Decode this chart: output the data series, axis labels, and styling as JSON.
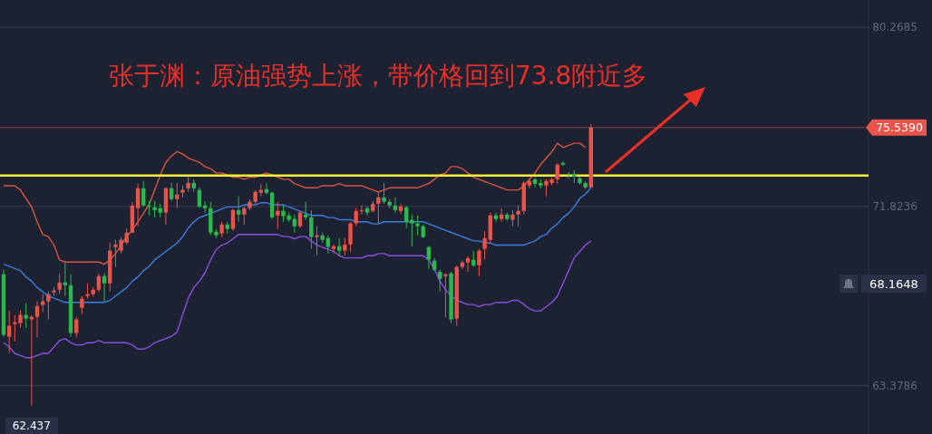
{
  "chart_data": {
    "type": "candlestick",
    "title": "张于渊：原油强势上涨，带价格回到73.8附近多",
    "categories": [
      null,
      null,
      null,
      null,
      null,
      null,
      null,
      null,
      null,
      null,
      null,
      null,
      null,
      null,
      null,
      null,
      null,
      null,
      null,
      null,
      null,
      null,
      null,
      null,
      null,
      null,
      null,
      null,
      null,
      null,
      null,
      null,
      null,
      null,
      null,
      null,
      null,
      null,
      null,
      null,
      null,
      null,
      null,
      null,
      null,
      null,
      null,
      null,
      null,
      null,
      null,
      null,
      null,
      null,
      null,
      null,
      null,
      null,
      null,
      null,
      null,
      null,
      null,
      null,
      null,
      null,
      null,
      null,
      null,
      null,
      null,
      null,
      null,
      null,
      null,
      null,
      null,
      null,
      null,
      null,
      null,
      null,
      null,
      null,
      null,
      null,
      null,
      null,
      null,
      null,
      null,
      null,
      null,
      null,
      null,
      null,
      null,
      null,
      null,
      null,
      null,
      null,
      null,
      null,
      null,
      null
    ],
    "ohlc": [
      [
        68.63,
        68.84,
        65.68,
        65.77
      ],
      [
        65.68,
        66.92,
        64.92,
        66.2
      ],
      [
        66.28,
        66.71,
        65.47,
        66.37
      ],
      [
        66.32,
        66.92,
        66.11,
        66.71
      ],
      [
        66.71,
        67.26,
        66.11,
        66.54
      ],
      [
        66.5,
        66.71,
        62.437,
        66.62
      ],
      [
        66.62,
        67.35,
        65.64,
        67.13
      ],
      [
        67.18,
        67.69,
        66.84,
        67.35
      ],
      [
        67.35,
        67.82,
        66.5,
        67.69
      ],
      [
        67.77,
        68.03,
        67.6,
        67.86
      ],
      [
        67.9,
        68.67,
        67.69,
        68.24
      ],
      [
        68.24,
        69.18,
        67.6,
        68.11
      ],
      [
        68.11,
        68.63,
        65.68,
        65.86
      ],
      [
        65.86,
        66.62,
        65.64,
        66.5
      ],
      [
        67.05,
        67.6,
        66.75,
        67.48
      ],
      [
        67.6,
        68.2,
        67.48,
        67.69
      ],
      [
        67.69,
        68.03,
        67.56,
        67.9
      ],
      [
        67.9,
        68.67,
        67.77,
        68.54
      ],
      [
        68.54,
        68.67,
        67.35,
        68.2
      ],
      [
        68.2,
        70.12,
        67.82,
        69.74
      ],
      [
        69.91,
        70.25,
        68.97,
        70.03
      ],
      [
        69.74,
        70.38,
        69.61,
        70.25
      ],
      [
        70.12,
        70.8,
        70.03,
        70.59
      ],
      [
        70.59,
        72.04,
        70.59,
        71.87
      ],
      [
        71.74,
        72.89,
        70.89,
        72.68
      ],
      [
        72.68,
        73.02,
        71.82,
        71.87
      ],
      [
        71.87,
        72.08,
        71.4,
        71.82
      ],
      [
        71.78,
        72.08,
        71.31,
        71.65
      ],
      [
        71.74,
        71.95,
        71.31,
        71.53
      ],
      [
        71.53,
        72.72,
        70.97,
        72.68
      ],
      [
        72.68,
        72.93,
        72.08,
        72.17
      ],
      [
        72.17,
        72.93,
        71.74,
        72.38
      ],
      [
        72.47,
        72.81,
        72.25,
        72.6
      ],
      [
        72.68,
        73.23,
        72.51,
        72.93
      ],
      [
        72.93,
        73.1,
        72.51,
        72.68
      ],
      [
        72.6,
        72.72,
        71.74,
        71.82
      ],
      [
        71.87,
        72.08,
        71.53,
        71.74
      ],
      [
        71.74,
        72.04,
        70.46,
        70.59
      ],
      [
        70.63,
        70.76,
        70.33,
        70.46
      ],
      [
        70.55,
        71.1,
        70.38,
        70.97
      ],
      [
        70.97,
        71.1,
        70.55,
        70.76
      ],
      [
        70.76,
        71.74,
        70.67,
        71.65
      ],
      [
        71.65,
        72.3,
        71.1,
        71.44
      ],
      [
        71.44,
        71.82,
        70.97,
        71.74
      ],
      [
        71.74,
        72.17,
        71.65,
        72.04
      ],
      [
        72.04,
        72.6,
        71.95,
        72.51
      ],
      [
        72.47,
        72.89,
        72.3,
        72.6
      ],
      [
        72.64,
        72.93,
        72.38,
        72.47
      ],
      [
        72.47,
        72.51,
        71.23,
        71.31
      ],
      [
        71.4,
        72.04,
        70.76,
        71.61
      ],
      [
        71.61,
        71.87,
        71.1,
        71.36
      ],
      [
        71.4,
        71.53,
        71.1,
        71.19
      ],
      [
        71.23,
        71.44,
        70.59,
        70.89
      ],
      [
        70.89,
        71.61,
        70.8,
        71.53
      ],
      [
        71.44,
        72.04,
        71.19,
        71.31
      ],
      [
        71.31,
        71.65,
        69.82,
        70.38
      ],
      [
        70.38,
        70.89,
        69.52,
        70.46
      ],
      [
        70.46,
        70.59,
        70.12,
        70.25
      ],
      [
        70.33,
        70.46,
        69.61,
        69.91
      ],
      [
        69.82,
        70.03,
        69.61,
        69.95
      ],
      [
        69.95,
        70.33,
        69.48,
        69.74
      ],
      [
        69.74,
        70.33,
        69.52,
        70.03
      ],
      [
        70.03,
        71.1,
        69.69,
        71.02
      ],
      [
        71.02,
        71.74,
        70.89,
        71.61
      ],
      [
        71.61,
        71.87,
        71.44,
        71.65
      ],
      [
        71.74,
        71.82,
        71.4,
        71.53
      ],
      [
        71.61,
        72.08,
        71.53,
        71.95
      ],
      [
        71.95,
        72.47,
        71.02,
        72.25
      ],
      [
        72.25,
        72.93,
        71.95,
        72.04
      ],
      [
        72.04,
        72.17,
        71.74,
        71.87
      ],
      [
        71.87,
        72.25,
        71.53,
        71.65
      ],
      [
        71.61,
        71.95,
        71.48,
        71.82
      ],
      [
        71.78,
        71.87,
        70.8,
        71.1
      ],
      [
        71.19,
        71.44,
        69.95,
        71.02
      ],
      [
        71.02,
        71.4,
        70.46,
        70.89
      ],
      [
        70.89,
        70.97,
        70.33,
        70.38
      ],
      [
        69.91,
        69.95,
        68.88,
        69.31
      ],
      [
        69.27,
        69.39,
        68.75,
        68.84
      ],
      [
        68.75,
        68.84,
        67.82,
        68.41
      ],
      [
        68.54,
        68.67,
        66.62,
        68.63
      ],
      [
        68.67,
        68.75,
        66.32,
        66.5
      ],
      [
        66.54,
        69.05,
        66.2,
        68.97
      ],
      [
        68.97,
        69.27,
        68.88,
        69.18
      ],
      [
        69.18,
        69.48,
        68.75,
        69.39
      ],
      [
        69.31,
        69.74,
        68.97,
        69.05
      ],
      [
        69.05,
        69.82,
        68.54,
        69.74
      ],
      [
        69.82,
        70.67,
        69.31,
        70.33
      ],
      [
        70.25,
        71.53,
        70.12,
        71.4
      ],
      [
        71.4,
        71.53,
        71.1,
        71.23
      ],
      [
        71.23,
        71.74,
        71.1,
        71.44
      ],
      [
        71.44,
        71.53,
        71.14,
        71.23
      ],
      [
        71.19,
        71.65,
        70.89,
        71.44
      ],
      [
        71.44,
        71.87,
        70.89,
        71.61
      ],
      [
        71.61,
        73.02,
        71.44,
        72.93
      ],
      [
        72.81,
        73.1,
        72.68,
        73.02
      ],
      [
        73.1,
        73.19,
        72.72,
        72.89
      ],
      [
        72.93,
        73.1,
        72.68,
        72.81
      ],
      [
        72.81,
        73.1,
        72.3,
        73.02
      ],
      [
        72.93,
        73.19,
        72.81,
        73.1
      ],
      [
        73.1,
        73.87,
        72.89,
        73.79
      ],
      [
        73.87,
        73.96,
        73.74,
        73.79
      ],
      [
        73.36,
        73.45,
        73.15,
        73.32
      ],
      [
        73.36,
        73.53,
        72.93,
        73.23
      ],
      [
        73.15,
        73.23,
        72.85,
        72.93
      ],
      [
        72.93,
        73.02,
        72.64,
        72.72
      ],
      [
        72.72,
        75.7,
        72.72,
        75.539
      ]
    ],
    "colors": [
      "#2db84d",
      "#e8544a",
      "#e8544a",
      "#e8544a",
      "#2db84d",
      "#e8544a",
      "#e8544a",
      "#e8544a",
      "#e8544a",
      "#e8544a",
      "#e8544a",
      "#2db84d",
      "#2db84d",
      "#e8544a",
      "#e8544a",
      "#e8544a",
      "#e8544a",
      "#e8544a",
      "#2db84d",
      "#e8544a",
      "#e8544a",
      "#e8544a",
      "#e8544a",
      "#e8544a",
      "#e8544a",
      "#2db84d",
      "#2db84d",
      "#2db84d",
      "#2db84d",
      "#e8544a",
      "#2db84d",
      "#e8544a",
      "#e8544a",
      "#e8544a",
      "#2db84d",
      "#2db84d",
      "#2db84d",
      "#2db84d",
      "#2db84d",
      "#e8544a",
      "#2db84d",
      "#e8544a",
      "#2db84d",
      "#e8544a",
      "#e8544a",
      "#e8544a",
      "#e8544a",
      "#2db84d",
      "#2db84d",
      "#e8544a",
      "#2db84d",
      "#2db84d",
      "#2db84d",
      "#e8544a",
      "#2db84d",
      "#2db84d",
      "#e8544a",
      "#2db84d",
      "#2db84d",
      "#e8544a",
      "#2db84d",
      "#e8544a",
      "#e8544a",
      "#e8544a",
      "#e8544a",
      "#2db84d",
      "#e8544a",
      "#e8544a",
      "#2db84d",
      "#2db84d",
      "#2db84d",
      "#e8544a",
      "#2db84d",
      "#2db84d",
      "#2db84d",
      "#2db84d",
      "#2db84d",
      "#2db84d",
      "#2db84d",
      "#e8544a",
      "#2db84d",
      "#e8544a",
      "#e8544a",
      "#e8544a",
      "#2db84d",
      "#e8544a",
      "#e8544a",
      "#e8544a",
      "#2db84d",
      "#e8544a",
      "#2db84d",
      "#e8544a",
      "#e8544a",
      "#e8544a",
      "#e8544a",
      "#2db84d",
      "#2db84d",
      "#e8544a",
      "#e8544a",
      "#e8544a",
      "#2db84d",
      "#2db84d",
      "#2db84d",
      "#2db84d",
      "#2db84d",
      "#e8544a"
    ],
    "series": [
      {
        "type": "line",
        "color": "#d9553f",
        "values": [
          72.8,
          72.8,
          72.8,
          72.6,
          72.2,
          71.8,
          71.1,
          70.5,
          70.4,
          70.0,
          69.3,
          69.2,
          69.2,
          69.2,
          69.2,
          69.2,
          69.2,
          69.2,
          69.1,
          69.3,
          69.6,
          70.0,
          70.4,
          70.7,
          71.1,
          71.5,
          71.9,
          72.6,
          73.3,
          73.9,
          74.2,
          74.4,
          74.3,
          74.1,
          74.0,
          73.9,
          73.7,
          73.6,
          73.4,
          73.4,
          73.3,
          73.2,
          73.2,
          73.1,
          73.2,
          73.2,
          73.3,
          73.4,
          73.3,
          73.2,
          73.1,
          73.1,
          72.9,
          72.8,
          72.7,
          72.7,
          72.7,
          72.8,
          72.8,
          72.8,
          72.9,
          72.8,
          72.8,
          72.8,
          72.8,
          72.7,
          72.6,
          72.5,
          72.6,
          72.7,
          72.7,
          72.7,
          72.7,
          72.7,
          72.7,
          72.8,
          72.9,
          73.1,
          73.3,
          73.4,
          73.7,
          73.7,
          73.6,
          73.4,
          73.2,
          73.1,
          73.0,
          72.9,
          72.8,
          72.7,
          72.6,
          72.6,
          72.6,
          72.8,
          73.1,
          73.4,
          73.8,
          74.1,
          74.4,
          74.8,
          74.6,
          74.7,
          74.8,
          74.8,
          74.6,
          null
        ]
      },
      {
        "type": "line",
        "color": "#3b7de0",
        "values": [
          69.1,
          69.0,
          68.9,
          68.8,
          68.5,
          68.3,
          68.0,
          67.8,
          67.6,
          67.5,
          67.4,
          67.3,
          67.3,
          67.3,
          67.3,
          67.3,
          67.3,
          67.3,
          67.3,
          67.4,
          67.6,
          67.8,
          68.0,
          68.3,
          68.5,
          68.8,
          69.0,
          69.3,
          69.5,
          69.7,
          69.9,
          70.1,
          70.4,
          70.8,
          71.1,
          71.3,
          71.4,
          71.5,
          71.6,
          71.7,
          71.8,
          71.8,
          71.8,
          71.9,
          71.9,
          71.9,
          72.0,
          72.0,
          71.9,
          71.9,
          71.9,
          71.8,
          71.7,
          71.6,
          71.5,
          71.4,
          71.4,
          71.4,
          71.3,
          71.3,
          71.2,
          71.2,
          71.2,
          71.1,
          71.1,
          71.1,
          71.0,
          71.0,
          71.1,
          71.1,
          71.1,
          71.1,
          71.1,
          71.1,
          71.1,
          71.1,
          71.0,
          70.9,
          70.8,
          70.7,
          70.6,
          70.5,
          70.4,
          70.3,
          70.2,
          70.2,
          70.1,
          70.1,
          70.0,
          70.0,
          70.0,
          70.0,
          70.0,
          70.0,
          70.1,
          70.2,
          70.4,
          70.5,
          70.8,
          71.0,
          71.3,
          71.5,
          71.8,
          72.2,
          72.4,
          72.7
        ]
      },
      {
        "type": "line",
        "color": "#8a4fe0",
        "values": [
          65.4,
          65.2,
          64.9,
          64.8,
          64.7,
          64.7,
          64.8,
          64.9,
          64.9,
          65.2,
          65.5,
          65.6,
          65.4,
          65.3,
          65.3,
          65.4,
          65.4,
          65.5,
          65.4,
          65.4,
          65.4,
          65.4,
          65.4,
          65.3,
          65.1,
          65.1,
          65.2,
          65.4,
          65.5,
          65.6,
          65.7,
          65.9,
          66.7,
          67.5,
          68.0,
          68.3,
          68.7,
          69.3,
          69.8,
          70.0,
          70.1,
          70.3,
          70.5,
          70.5,
          70.5,
          70.5,
          70.5,
          70.5,
          70.5,
          70.5,
          70.4,
          70.4,
          70.3,
          70.4,
          70.4,
          70.2,
          70.0,
          69.9,
          69.8,
          69.7,
          69.5,
          69.4,
          69.4,
          69.4,
          69.4,
          69.5,
          69.5,
          69.6,
          69.6,
          69.5,
          69.5,
          69.5,
          69.5,
          69.5,
          69.5,
          69.5,
          69.3,
          68.9,
          68.3,
          67.9,
          67.6,
          67.4,
          67.3,
          67.2,
          67.2,
          67.1,
          67.2,
          67.2,
          67.3,
          67.3,
          67.3,
          67.4,
          67.4,
          67.2,
          67.0,
          66.9,
          66.9,
          67.1,
          67.3,
          67.6,
          68.2,
          68.8,
          69.4,
          69.7,
          70.0,
          70.2
        ]
      }
    ],
    "ylim": [
      61.1,
      81.55
    ],
    "yticks": [
      80.2685,
      71.8236,
      63.3786
    ],
    "grid": "y",
    "ref_lines": [
      {
        "axis": "y",
        "value": 73.28,
        "color": "#f5ef3a"
      },
      {
        "axis": "y",
        "value": 75.539,
        "label": "75.5390",
        "color": "#e8544a"
      }
    ],
    "annotations": [
      "68.1648",
      {
        "text": "62.437",
        "y": 62.437
      }
    ]
  }
}
